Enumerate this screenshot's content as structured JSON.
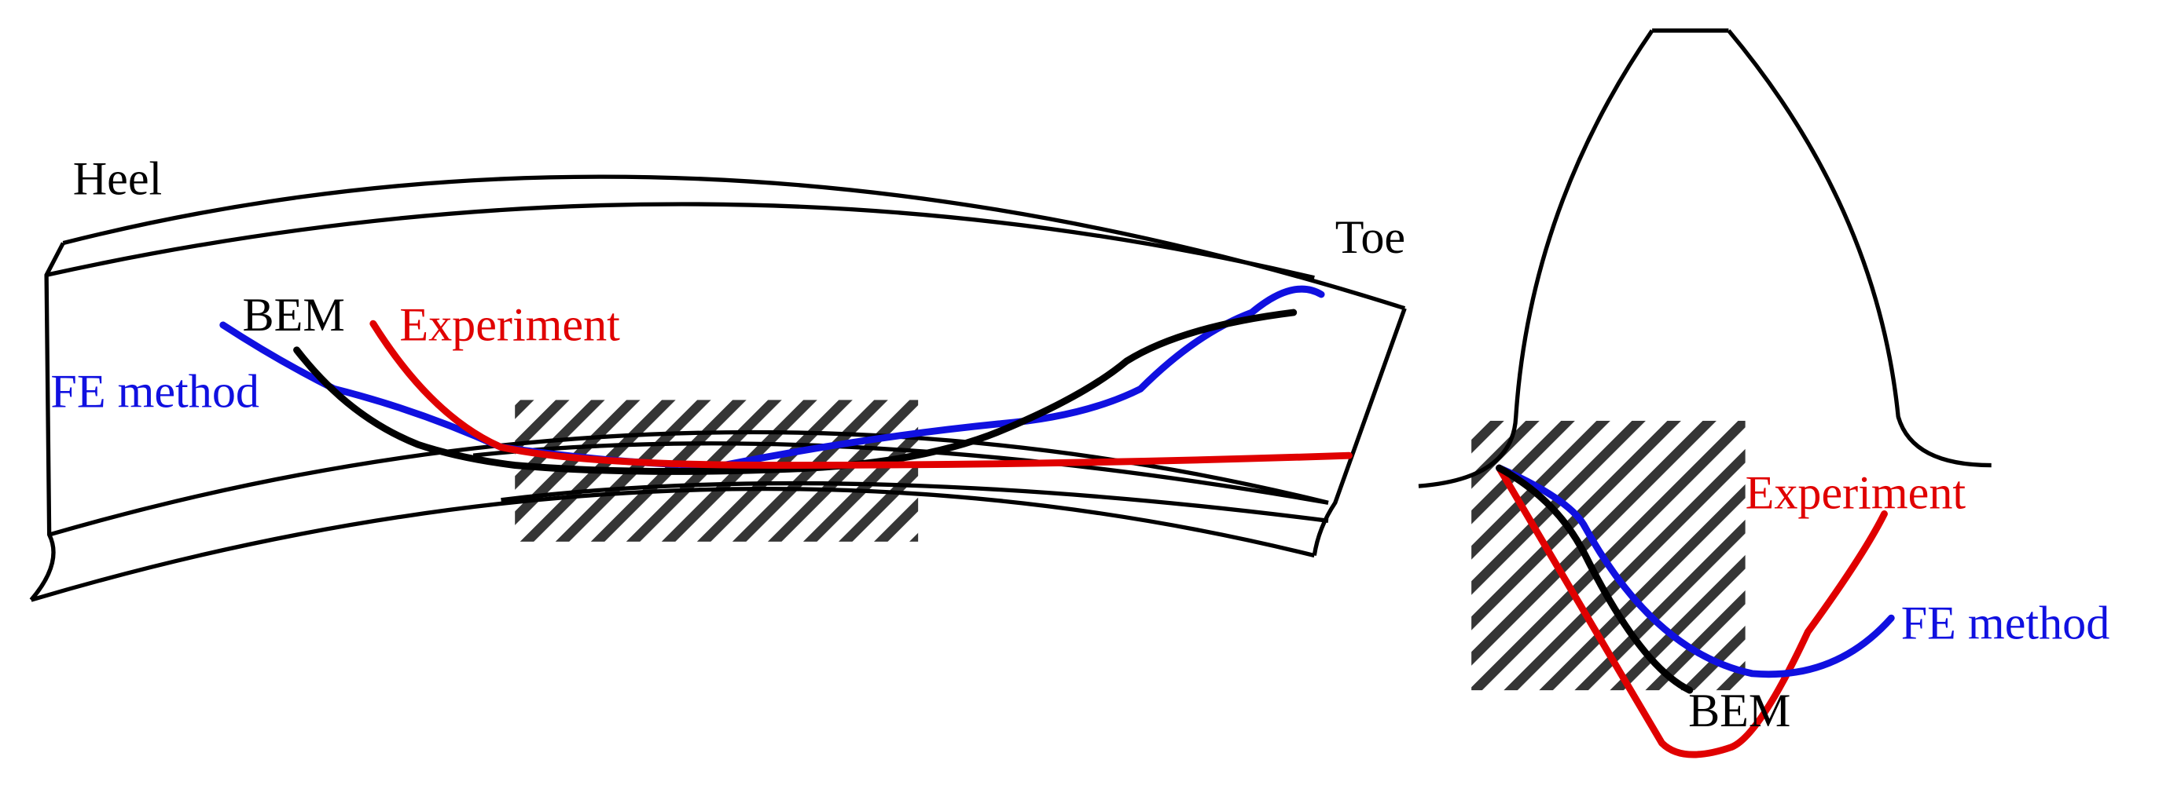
{
  "left_view": {
    "heel": "Heel",
    "toe": "Toe",
    "bem": "BEM",
    "experiment": "Experiment",
    "fe_method": "FE method"
  },
  "right_view": {
    "experiment": "Experiment",
    "fe_method": "FE method",
    "bem": "BEM"
  }
}
